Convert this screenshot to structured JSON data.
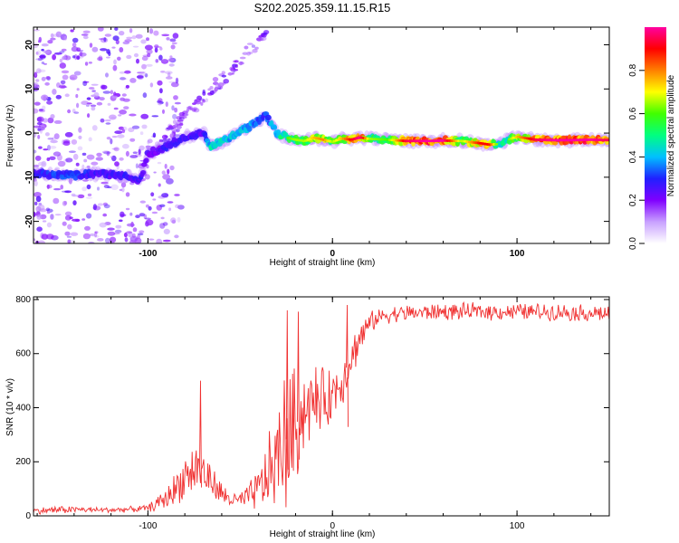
{
  "figure_title": "S202.2025.359.11.15.R15",
  "chart_data": [
    {
      "type": "heatmap",
      "title": "S202.2025.359.11.15.R15",
      "xlabel": "Height of straight line (km)",
      "ylabel": "Frequency (Hz)",
      "xlim": [
        -162,
        150
      ],
      "ylim": [
        -25,
        24
      ],
      "xticks": [
        -100,
        0,
        100
      ],
      "yticks": [
        -20,
        -10,
        0,
        10,
        20
      ],
      "grid": false,
      "colorbar": {
        "label": "Normalized spectral amplitude",
        "range": [
          0.0,
          1.0
        ],
        "ticks": [
          0.0,
          0.2,
          0.4,
          0.6,
          0.8
        ],
        "tick_labels": [
          "0.0",
          "0.2",
          "0.4",
          "0.6",
          "0.8"
        ],
        "colors": [
          "#ffffff",
          "#c8a0ff",
          "#8000ff",
          "#2020ff",
          "#00c0ff",
          "#00ff80",
          "#40ff00",
          "#ffff00",
          "#ff8000",
          "#ff0000",
          "#ff00a0"
        ]
      },
      "ridge": {
        "x": [
          -162,
          -150,
          -140,
          -130,
          -120,
          -110,
          -104,
          -100,
          -95,
          -90,
          -85,
          -80,
          -75,
          -70,
          -66,
          -60,
          -55,
          -50,
          -45,
          -40,
          -36,
          -30,
          -25,
          -20,
          -15,
          -10,
          -5,
          0,
          5,
          10,
          15,
          20,
          30,
          40,
          50,
          60,
          70,
          80,
          85,
          90,
          95,
          100,
          110,
          120,
          130,
          140,
          150
        ],
        "y": [
          -9,
          -9.5,
          -9.5,
          -9.2,
          -9.5,
          -10,
          -10.5,
          -4.5,
          -4,
          -3,
          -2,
          -1,
          -0.5,
          0,
          -3,
          -2,
          -1,
          0.5,
          1.5,
          3,
          4,
          0,
          -1,
          -1.5,
          -1.8,
          -1,
          -1.5,
          -2,
          -1.2,
          -1.5,
          -1,
          -1.3,
          -1.5,
          -1.8,
          -1.8,
          -1.7,
          -1.8,
          -2.3,
          -2.6,
          -2.5,
          -1.5,
          -0.8,
          -1.5,
          -1.6,
          -1.6,
          -1.5,
          -1.6
        ],
        "amplitude": [
          0.3,
          0.35,
          0.35,
          0.3,
          0.3,
          0.3,
          0.3,
          0.25,
          0.25,
          0.3,
          0.3,
          0.3,
          0.3,
          0.25,
          0.5,
          0.5,
          0.45,
          0.45,
          0.45,
          0.35,
          0.35,
          0.5,
          0.55,
          0.6,
          0.6,
          0.7,
          0.75,
          0.6,
          0.7,
          0.85,
          0.95,
          0.6,
          0.55,
          0.9,
          0.95,
          0.95,
          0.6,
          0.85,
          0.85,
          0.5,
          0.55,
          0.7,
          0.9,
          0.95,
          0.95,
          0.95,
          0.9
        ]
      }
    },
    {
      "type": "line",
      "xlabel": "Height of straight line (km)",
      "ylabel": "SNR (10 * v/v)",
      "xlim": [
        -162,
        150
      ],
      "ylim": [
        0,
        810
      ],
      "xticks": [
        -100,
        0,
        100
      ],
      "yticks": [
        0,
        200,
        400,
        600,
        800
      ],
      "grid": false,
      "color": "#f03030",
      "series": [
        {
          "name": "SNR",
          "x": [
            -162,
            -150,
            -140,
            -130,
            -120,
            -110,
            -100,
            -95,
            -90,
            -85,
            -80,
            -75,
            -72,
            -70,
            -65,
            -60,
            -55,
            -50,
            -45,
            -40,
            -35,
            -30,
            -25,
            -22,
            -20,
            -18,
            -15,
            -10,
            -5,
            0,
            5,
            10,
            15,
            20,
            25,
            30,
            40,
            50,
            60,
            70,
            80,
            90,
            100,
            110,
            120,
            130,
            140,
            150
          ],
          "mean": [
            18,
            22,
            24,
            22,
            22,
            24,
            28,
            45,
            65,
            100,
            150,
            170,
            180,
            160,
            120,
            80,
            60,
            55,
            70,
            100,
            150,
            210,
            280,
            300,
            310,
            360,
            400,
            420,
            430,
            450,
            500,
            580,
            660,
            710,
            735,
            745,
            750,
            752,
            755,
            755,
            755,
            755,
            755,
            755,
            755,
            752,
            750,
            748
          ],
          "spread": [
            10,
            15,
            12,
            10,
            10,
            10,
            12,
            25,
            40,
            60,
            80,
            90,
            90,
            80,
            60,
            40,
            30,
            30,
            50,
            80,
            130,
            200,
            260,
            250,
            230,
            180,
            140,
            130,
            110,
            100,
            90,
            80,
            60,
            40,
            30,
            30,
            30,
            30,
            30,
            30,
            30,
            30,
            30,
            30,
            30,
            30,
            30,
            30
          ]
        }
      ],
      "spikes": [
        {
          "x": -71.5,
          "y": 500
        },
        {
          "x": -24.5,
          "y": 760
        },
        {
          "x": -18.5,
          "y": 755
        },
        {
          "x": 8,
          "y": 780
        }
      ]
    }
  ]
}
